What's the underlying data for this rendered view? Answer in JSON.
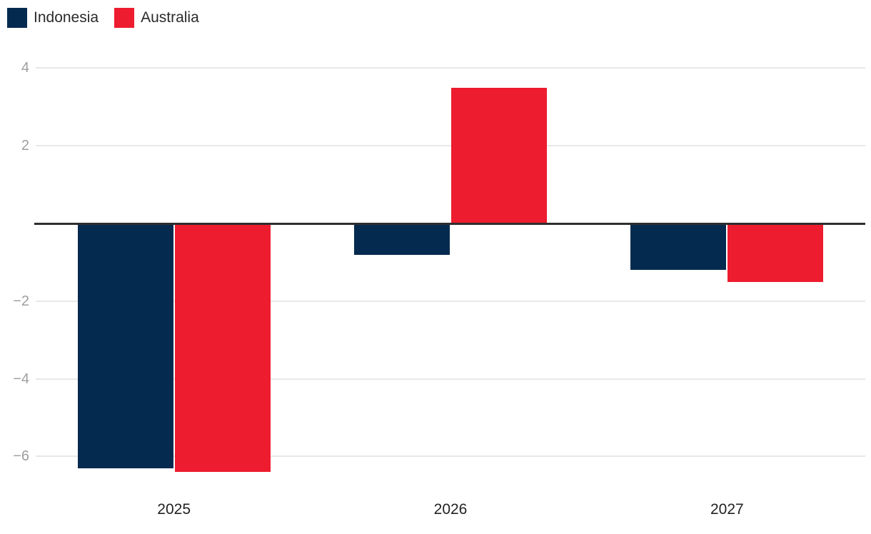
{
  "chart_data": {
    "type": "bar",
    "title": "",
    "categories": [
      "2025",
      "2026",
      "2027"
    ],
    "series": [
      {
        "name": "Indonesia",
        "color": "#052a4f",
        "values": [
          -6.3,
          -0.8,
          -1.2
        ]
      },
      {
        "name": "Australia",
        "color": "#ed1c2e",
        "values": [
          -6.4,
          3.5,
          -1.5
        ]
      }
    ],
    "y_axis": {
      "ticks": [
        4,
        2,
        -2,
        -4,
        -6
      ],
      "tick_labels": [
        "4",
        "2",
        "−2",
        "−4",
        "−6"
      ],
      "ylim": [
        -6.6,
        4.4
      ],
      "grid": true,
      "zero_line": true
    },
    "x_axis": {
      "tick_labels": [
        "2025",
        "2026",
        "2027"
      ]
    },
    "legend_position": "top-left"
  },
  "colors": {
    "background": "#ffffff",
    "grid": "#e8e8e8",
    "zero_line": "#2e2e2e",
    "y_tick_label": "#9e9e9e",
    "x_tick_label": "#222222",
    "legend_text": "#2b2b2b"
  }
}
